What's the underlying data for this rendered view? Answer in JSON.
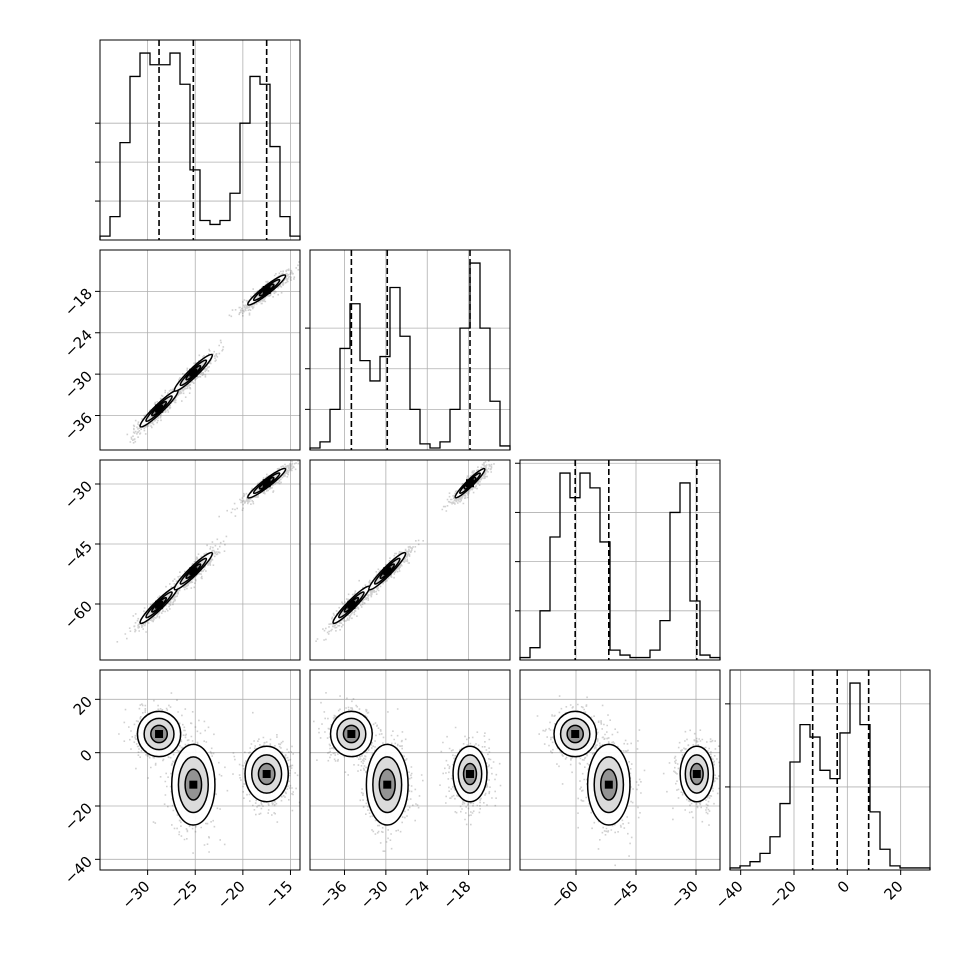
{
  "chart_data": {
    "type": "corner",
    "parameters": [
      {
        "range": [
          -35,
          -14
        ],
        "ticks": [
          -30,
          -25,
          -20,
          -15
        ],
        "quantiles": [
          -28.8,
          -25.2,
          -17.5
        ]
      },
      {
        "range": [
          -41,
          -12
        ],
        "ticks": [
          -36,
          -30,
          -24,
          -18
        ],
        "quantiles": [
          -35.0,
          -29.8,
          -17.8
        ]
      },
      {
        "range": [
          -74,
          -24
        ],
        "ticks": [
          -60,
          -45,
          -30
        ],
        "quantiles": [
          -60.2,
          -51.8,
          -29.8
        ]
      },
      {
        "range": [
          -44,
          31
        ],
        "ticks": [
          -40,
          -20,
          0,
          20
        ],
        "quantiles": [
          -13.0,
          -3.8,
          8.0
        ]
      }
    ],
    "histograms": [
      [
        1,
        6,
        25,
        42,
        48,
        45,
        45,
        48,
        40,
        18,
        5,
        4,
        5,
        12,
        30,
        42,
        40,
        24,
        6,
        1
      ],
      [
        0.5,
        2,
        10,
        25,
        36,
        22,
        17,
        23,
        40,
        28,
        10,
        1.5,
        0.5,
        2,
        10,
        30,
        46,
        30,
        12,
        1
      ],
      [
        0.5,
        2.5,
        10,
        25,
        38,
        33,
        38,
        35,
        24,
        2,
        1,
        0.5,
        0.5,
        2,
        8,
        30,
        36,
        12,
        1,
        0.5
      ],
      [
        0.5,
        1,
        2,
        4,
        8,
        16,
        26,
        35,
        32,
        24,
        22,
        33,
        45,
        35,
        14,
        5,
        1,
        0.5,
        0.5,
        0.5
      ]
    ],
    "hist_yticks": [
      [
        10,
        20,
        30
      ],
      [
        10,
        20,
        30
      ],
      [
        10,
        20,
        30,
        40
      ],
      [
        20,
        40
      ]
    ],
    "clusters": [
      {
        "mean": [
          -28.8,
          -35.0,
          -60.2,
          7.0
        ],
        "sd": [
          1.2,
          1.6,
          2.8,
          4.5
        ],
        "weight": 0.3
      },
      {
        "mean": [
          -25.2,
          -29.8,
          -51.8,
          -12.0
        ],
        "sd": [
          1.2,
          1.6,
          2.8,
          8.0
        ],
        "weight": 0.3
      },
      {
        "mean": [
          -17.5,
          -17.8,
          -29.8,
          -8.0
        ],
        "sd": [
          1.2,
          1.3,
          2.2,
          5.5
        ],
        "weight": 0.4
      }
    ],
    "grid": true
  }
}
